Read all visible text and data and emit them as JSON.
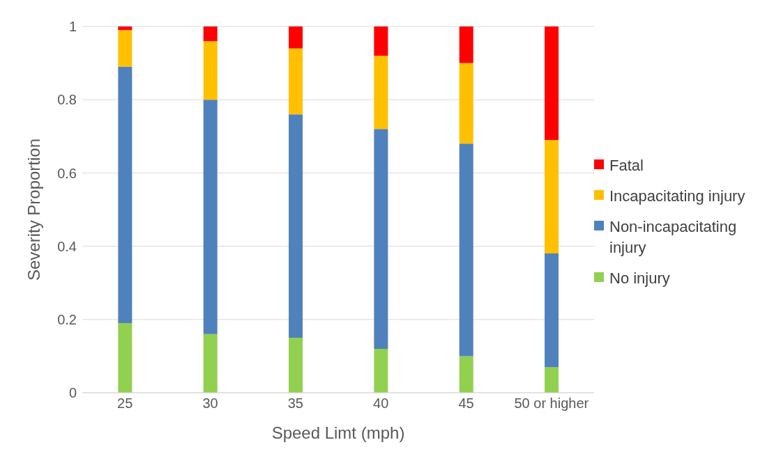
{
  "chart_data": {
    "type": "bar",
    "stacked": true,
    "xlabel": "Speed Limt (mph)",
    "ylabel": "Severity Proportion",
    "categories": [
      "25",
      "30",
      "35",
      "40",
      "45",
      "50 or higher"
    ],
    "series": [
      {
        "name": "No injury",
        "color": "#92d050",
        "values": [
          0.19,
          0.16,
          0.15,
          0.12,
          0.1,
          0.07
        ]
      },
      {
        "name": "Non-incapacitating injury",
        "color": "#4f81bd",
        "values": [
          0.7,
          0.64,
          0.61,
          0.6,
          0.58,
          0.31
        ]
      },
      {
        "name": "Incapacitating injury",
        "color": "#ffc000",
        "values": [
          0.1,
          0.16,
          0.18,
          0.2,
          0.22,
          0.31
        ]
      },
      {
        "name": "Fatal",
        "color": "#ff0000",
        "values": [
          0.01,
          0.04,
          0.06,
          0.08,
          0.1,
          0.31
        ]
      }
    ],
    "ylim": [
      0,
      1
    ],
    "yticks": [
      0,
      0.2,
      0.4,
      0.6,
      0.8,
      1
    ],
    "grid": "y",
    "legend": "right"
  }
}
